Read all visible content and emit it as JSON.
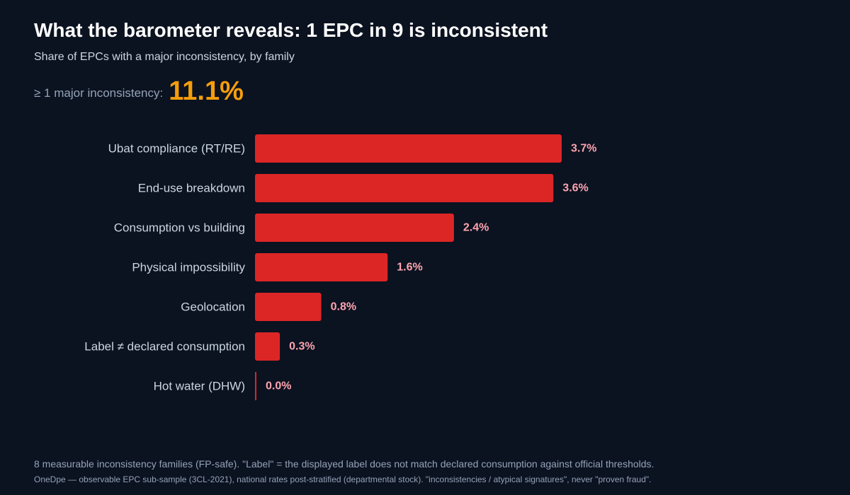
{
  "header": {
    "title": "What the barometer reveals: 1 EPC in 9 is inconsistent",
    "subtitle": "Share of EPCs with a major inconsistency, by family",
    "headline_label": "≥ 1 major inconsistency:",
    "headline_value": "11.1%"
  },
  "footer": {
    "note": "8 measurable inconsistency families (FP-safe). \"Label\" = the displayed label does not match declared consumption against official thresholds.",
    "source": "OneDpe — observable EPC sub-sample (3CL-2021), national rates post-stratified (departmental stock). \"inconsistencies / atypical signatures\", never \"proven fraud\"."
  },
  "colors": {
    "background": "#0b1220",
    "bar": "#dc2626",
    "value_label": "#fda4af",
    "headline": "#f59e0b"
  },
  "chart_data": {
    "type": "bar",
    "orientation": "horizontal",
    "title": "What the barometer reveals: 1 EPC in 9 is inconsistent",
    "subtitle": "Share of EPCs with a major inconsistency, by family",
    "categories": [
      "Ubat compliance (RT/RE)",
      "End-use breakdown",
      "Consumption vs building",
      "Physical impossibility",
      "Geolocation",
      "Label ≠ declared consumption",
      "Hot water (DHW)"
    ],
    "values": [
      3.7,
      3.6,
      2.4,
      1.6,
      0.8,
      0.3,
      0.0
    ],
    "value_labels": [
      "3.7%",
      "3.6%",
      "2.4%",
      "1.6%",
      "0.8%",
      "0.3%",
      "0.0%"
    ],
    "unit": "%",
    "xlim": [
      0,
      3.7
    ],
    "grid": false,
    "legend": "none"
  }
}
